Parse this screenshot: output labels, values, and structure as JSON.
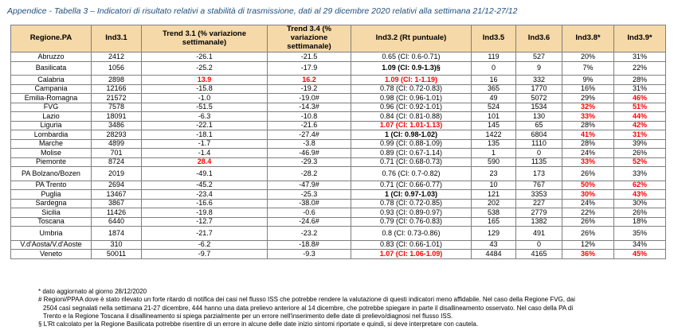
{
  "title": "Appendice - Tabella 3 – Indicatori di risultato relativi a stabilità di trasmissione, dati al 29 dicembre 2020 relativi alla settimana 21/12-27/12",
  "headers": [
    "Regione.PA",
    "Ind3.1",
    "Trend 3.1 (% variazione settimanale)",
    "Trend 3.4 (% variazione settimanale)",
    "Ind3.2 (Rt puntuale)",
    "Ind3.5",
    "Ind3.6",
    "Ind3.8*",
    "Ind3.9*"
  ],
  "rows": [
    {
      "region": "Abruzzo",
      "ind31": "2412",
      "t31": "-26.1",
      "t34": "-21.5",
      "ind32": "0.65 (CI: 0.6-0.71)",
      "ind35": "119",
      "ind36": "527",
      "ind38": "20%",
      "ind39": "31%"
    },
    {
      "region": "Basilicata",
      "ind31": "1056",
      "t31": "-25.2",
      "t34": "-17.9",
      "ind32": "1.09 (CI: 0.9-1.3)§",
      "ind35": "0",
      "ind36": "9",
      "ind38": "7%",
      "ind39": "22%",
      "tall": true,
      "s_ind32": "bold"
    },
    {
      "region": "Calabria",
      "ind31": "2898",
      "t31": "13.9",
      "t34": "16.2",
      "ind32": "1.09 (CI: 1-1.19)",
      "ind35": "16",
      "ind36": "332",
      "ind38": "9%",
      "ind39": "28%",
      "s_t31": "red",
      "s_t34": "red",
      "s_ind32": "red"
    },
    {
      "region": "Campania",
      "ind31": "12166",
      "t31": "-15.8",
      "t34": "-19.2",
      "ind32": "0.78 (CI: 0.72-0.83)",
      "ind35": "365",
      "ind36": "1770",
      "ind38": "16%",
      "ind39": "31%"
    },
    {
      "region": "Emilia-Romagna",
      "ind31": "21572",
      "t31": "-1.0",
      "t34": "-19.0#",
      "ind32": "0.98 (CI: 0.96-1.01)",
      "ind35": "49",
      "ind36": "5072",
      "ind38": "29%",
      "ind39": "46%",
      "s_ind39": "red"
    },
    {
      "region": "FVG",
      "ind31": "7578",
      "t31": "-51.5",
      "t34": "-14.3#",
      "ind32": "0.96 (CI: 0.92-1.01)",
      "ind35": "524",
      "ind36": "1534",
      "ind38": "32%",
      "ind39": "51%",
      "s_ind38": "red",
      "s_ind39": "red"
    },
    {
      "region": "Lazio",
      "ind31": "18091",
      "t31": "-6.3",
      "t34": "-10.8",
      "ind32": "0.84 (CI: 0.81-0.88)",
      "ind35": "101",
      "ind36": "130",
      "ind38": "33%",
      "ind39": "44%",
      "s_ind38": "red",
      "s_ind39": "red"
    },
    {
      "region": "Liguria",
      "ind31": "3486",
      "t31": "-22.1",
      "t34": "-21.6",
      "ind32": "1.07 (CI: 1.01-1.13)",
      "ind35": "145",
      "ind36": "65",
      "ind38": "28%",
      "ind39": "42%",
      "s_ind32": "red",
      "s_ind39": "red"
    },
    {
      "region": "Lombardia",
      "ind31": "28293",
      "t31": "-18.1",
      "t34": "-27.4#",
      "ind32": "1 (CI: 0.98-1.02)",
      "ind35": "1422",
      "ind36": "6804",
      "ind38": "41%",
      "ind39": "31%",
      "s_ind32": "bold",
      "s_ind38": "red",
      "s_ind39": "red"
    },
    {
      "region": "Marche",
      "ind31": "4899",
      "t31": "-1.7",
      "t34": "-3.8",
      "ind32": "0.99 (CI: 0.88-1.09)",
      "ind35": "135",
      "ind36": "1110",
      "ind38": "28%",
      "ind39": "39%"
    },
    {
      "region": "Molise",
      "ind31": "701",
      "t31": "-1.4",
      "t34": "-46.9#",
      "ind32": "0.89 (CI: 0.67-1.14)",
      "ind35": "1",
      "ind36": "0",
      "ind38": "24%",
      "ind39": "26%"
    },
    {
      "region": "Piemonte",
      "ind31": "8724",
      "t31": "28.4",
      "t34": "-29.3",
      "ind32": "0.71 (CI: 0.68-0.73)",
      "ind35": "590",
      "ind36": "1135",
      "ind38": "33%",
      "ind39": "52%",
      "s_t31": "red",
      "s_ind38": "red",
      "s_ind39": "red"
    },
    {
      "region": "PA Bolzano/Bozen",
      "ind31": "2019",
      "t31": "-49.1",
      "t34": "-28.2",
      "ind32": "0.76 (CI: 0.7-0.82)",
      "ind35": "23",
      "ind36": "173",
      "ind38": "26%",
      "ind39": "33%",
      "tall": true
    },
    {
      "region": "PA Trento",
      "ind31": "2694",
      "t31": "-45.2",
      "t34": "-47.9#",
      "ind32": "0.71 (CI: 0.66-0.77)",
      "ind35": "10",
      "ind36": "767",
      "ind38": "50%",
      "ind39": "62%",
      "s_ind38": "red",
      "s_ind39": "red"
    },
    {
      "region": "Puglia",
      "ind31": "13467",
      "t31": "-23.4",
      "t34": "-25.3",
      "ind32": "1 (CI: 0.97-1.03)",
      "ind35": "121",
      "ind36": "3353",
      "ind38": "30%",
      "ind39": "43%",
      "s_ind32": "bold",
      "s_ind38": "red",
      "s_ind39": "red"
    },
    {
      "region": "Sardegna",
      "ind31": "3867",
      "t31": "-16.6",
      "t34": "-38.0#",
      "ind32": "0.78 (CI: 0.72-0.85)",
      "ind35": "202",
      "ind36": "227",
      "ind38": "24%",
      "ind39": "30%"
    },
    {
      "region": "Sicilia",
      "ind31": "11426",
      "t31": "-19.8",
      "t34": "-0.6",
      "ind32": "0.93 (CI: 0.89-0.97)",
      "ind35": "538",
      "ind36": "2779",
      "ind38": "22%",
      "ind39": "26%"
    },
    {
      "region": "Toscana",
      "ind31": "6440",
      "t31": "-12.7",
      "t34": "-24.6#",
      "ind32": "0.79 (CI: 0.76-0.83)",
      "ind35": "165",
      "ind36": "1382",
      "ind38": "26%",
      "ind39": "18%"
    },
    {
      "region": "Umbria",
      "ind31": "1874",
      "t31": "-21.7",
      "t34": "-23.2",
      "ind32": "0.8 (CI: 0.73-0.86)",
      "ind35": "129",
      "ind36": "491",
      "ind38": "26%",
      "ind39": "35%",
      "tall": true
    },
    {
      "region": "V.d'Aosta/V.d'Aoste",
      "ind31": "310",
      "t31": "-6.2",
      "t34": "-18.8#",
      "ind32": "0.83 (CI: 0.66-1.01)",
      "ind35": "43",
      "ind36": "0",
      "ind38": "12%",
      "ind39": "34%"
    },
    {
      "region": "Veneto",
      "ind31": "50011",
      "t31": "-9.7",
      "t34": "-9.3",
      "ind32": "1.07 (CI: 1.06-1.09)",
      "ind35": "4484",
      "ind36": "4165",
      "ind38": "36%",
      "ind39": "45%",
      "s_ind32": "red",
      "s_ind38": "red",
      "s_ind39": "red"
    }
  ],
  "notes": [
    "* dato aggiornato al giorno 28/12/2020",
    "# Regioni/PPAA dove è stato rilevato un forte ritardo di notifica dei casi nel flusso ISS che potrebbe rendere la valutazione di questi indicatori meno affidabile. Nel caso della Regione FVG, dai",
    "2504 casi segnalati nella settimana 21-27 dicembre, 444 hanno una data prelievo anteriore al 14 dicembre, che potrebbe spiegare in parte il disallineamento osservato. Nel caso della PA di",
    "Trento e la Regione Toscana il disallineamento si spiega parzialmente per un errore nell'inserimento delle date di prelievo/diagnosi nel flusso ISS.",
    "§ L'Rt calcolato per la Regione Basilicata potrebbe risentire di un errore in alcune delle date inizio sintomi riportate e quindi, si deve interpretare con cautela."
  ],
  "colors": {
    "header_bg": "#f5d9a8",
    "highlight": "#ff0000",
    "title": "#1f4e79",
    "border": "#7f7f7f"
  }
}
